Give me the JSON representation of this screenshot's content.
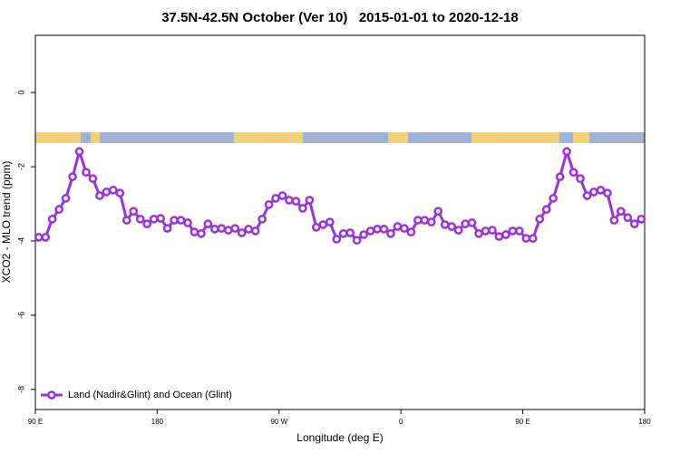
{
  "chart_data": {
    "type": "line",
    "title": "37.5N-42.5N October (Ver 10)   2015-01-01 to 2020-12-18",
    "xlabel": "Longitude (deg E)",
    "ylabel": "XCO2 - MLO trend (ppm)",
    "xlim": [
      90,
      540
    ],
    "ylim": [
      -8.54,
      1.54
    ],
    "xticks": [
      {
        "value": 90,
        "label": "90 E"
      },
      {
        "value": 180,
        "label": "180"
      },
      {
        "value": 270,
        "label": "90 W"
      },
      {
        "value": 360,
        "label": "0"
      },
      {
        "value": 450,
        "label": "90 E"
      },
      {
        "value": 540,
        "label": "180"
      }
    ],
    "yticks": [
      0,
      -2,
      -4,
      -6,
      -8
    ],
    "legend": "lower left",
    "x": [
      92.5,
      97.5,
      102.5,
      107.5,
      112.5,
      117.5,
      122.5,
      127.5,
      132.5,
      137.5,
      142.5,
      147.5,
      152.5,
      157.5,
      162.5,
      167.5,
      172.5,
      177.5,
      182.5,
      187.5,
      192.5,
      197.5,
      202.5,
      207.5,
      212.5,
      217.5,
      222.5,
      227.5,
      232.5,
      237.5,
      242.5,
      247.5,
      252.5,
      257.5,
      262.5,
      267.5,
      272.5,
      277.5,
      282.5,
      287.5,
      292.5,
      297.5,
      302.5,
      307.5,
      312.5,
      317.5,
      322.5,
      327.5,
      332.5,
      337.5,
      342.5,
      347.5,
      352.5,
      357.5,
      362.5,
      367.5,
      372.5,
      377.5,
      382.5,
      387.5,
      392.5,
      397.5,
      402.5,
      407.5,
      412.5,
      417.5,
      422.5,
      427.5,
      432.5,
      437.5,
      442.5,
      447.5,
      452.5,
      457.5,
      462.5,
      467.5,
      472.5,
      477.5,
      482.5,
      487.5,
      492.5,
      497.5,
      502.5,
      507.5,
      512.5,
      517.5,
      522.5,
      527.5,
      532.5,
      537.5
    ],
    "series": [
      {
        "name": "Land (Nadir&Glint) and Ocean (Glint)",
        "color": "#9b30e0",
        "values": [
          -3.9,
          -3.9,
          -3.41,
          -3.15,
          -2.85,
          -2.27,
          -1.59,
          -2.15,
          -2.32,
          -2.78,
          -2.68,
          -2.63,
          -2.71,
          -3.44,
          -3.2,
          -3.41,
          -3.54,
          -3.41,
          -3.39,
          -3.66,
          -3.44,
          -3.44,
          -3.51,
          -3.76,
          -3.8,
          -3.54,
          -3.68,
          -3.66,
          -3.71,
          -3.66,
          -3.78,
          -3.68,
          -3.73,
          -3.41,
          -3.02,
          -2.85,
          -2.78,
          -2.9,
          -2.93,
          -3.12,
          -2.9,
          -3.63,
          -3.56,
          -3.49,
          -3.95,
          -3.8,
          -3.78,
          -3.98,
          -3.83,
          -3.73,
          -3.68,
          -3.68,
          -3.8,
          -3.61,
          -3.66,
          -3.76,
          -3.44,
          -3.44,
          -3.49,
          -3.2,
          -3.56,
          -3.61,
          -3.71,
          -3.54,
          -3.51,
          -3.8,
          -3.73,
          -3.71,
          -3.88,
          -3.83,
          -3.73,
          -3.73,
          -3.93,
          -3.93,
          -3.41,
          -3.15,
          -2.85,
          -2.27,
          -1.59,
          -2.15,
          -2.32,
          -2.78,
          -2.68,
          -2.63,
          -2.71,
          -3.44,
          -3.2,
          -3.37,
          -3.54,
          -3.41
        ]
      }
    ]
  }
}
